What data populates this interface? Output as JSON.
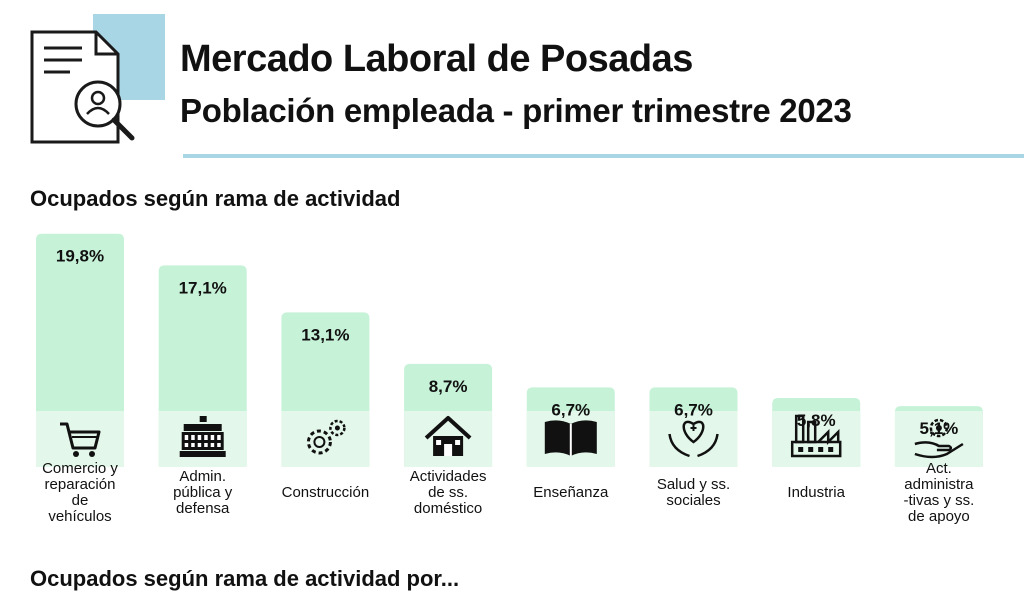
{
  "header": {
    "title": "Mercado Laboral de Posadas",
    "subtitle": "Población empleada - primer trimestre 2023",
    "icon": "document-search-icon"
  },
  "section_title": "Ocupados según rama de actividad",
  "next_section_title": "Ocupados según rama de actividad por...",
  "colors": {
    "bar": "#c6f2d8",
    "icon_band": "#e3f7ea",
    "rule": "#a9d6e5",
    "icon_accent": "#a9d6e5"
  },
  "chart_data": {
    "type": "bar",
    "title": "Ocupados según rama de actividad",
    "xlabel": "",
    "ylabel": "",
    "ylim": [
      0,
      20
    ],
    "grid": false,
    "categories": [
      "Comercio y reparación de vehículos",
      "Admin. pública y defensa",
      "Construcción",
      "Actividades de ss. doméstico",
      "Enseñanza",
      "Salud y ss. sociales",
      "Industria",
      "Act. administra -tivas y ss. de apoyo"
    ],
    "category_lines": [
      [
        "Comercio y",
        "reparación",
        "de",
        "vehículos"
      ],
      [
        "Admin.",
        "pública y",
        "defensa"
      ],
      [
        "Construcción"
      ],
      [
        "Actividades",
        "de ss.",
        "doméstico"
      ],
      [
        "Enseñanza"
      ],
      [
        "Salud y ss.",
        "sociales"
      ],
      [
        "Industria"
      ],
      [
        "Act.",
        "administra",
        "-tivas y ss.",
        "de apoyo"
      ]
    ],
    "values": [
      19.8,
      17.1,
      13.1,
      8.7,
      6.7,
      6.7,
      5.8,
      5.1
    ],
    "value_labels": [
      "19,8%",
      "17,1%",
      "13,1%",
      "8,7%",
      "6,7%",
      "6,7%",
      "5,8%",
      "5,1%"
    ],
    "icons": [
      "cart-icon",
      "government-building-icon",
      "gears-icon",
      "house-icon",
      "book-icon",
      "heart-hands-icon",
      "factory-icon",
      "hand-gear-icon"
    ]
  }
}
